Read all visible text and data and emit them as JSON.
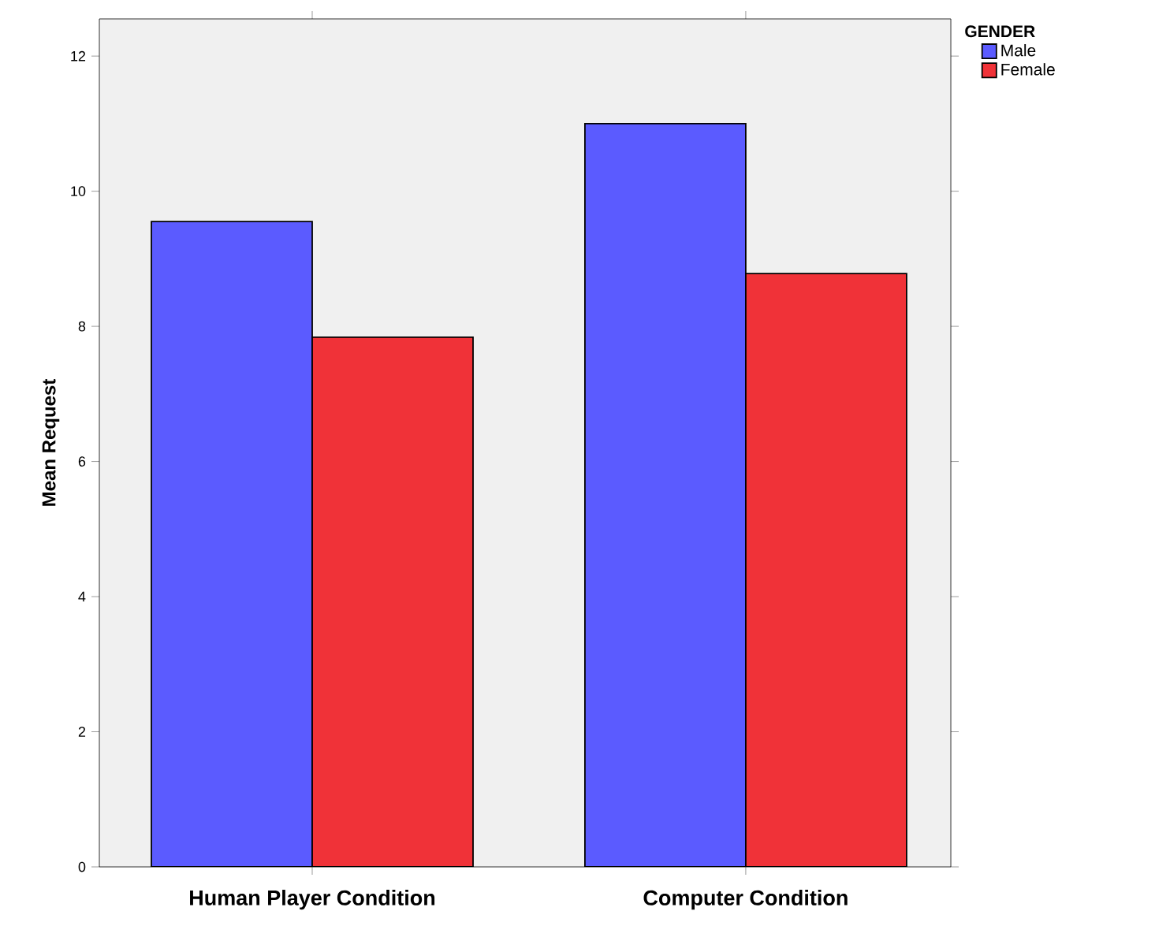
{
  "chart_data": {
    "type": "bar",
    "xlabel": null,
    "ylabel": "Mean Request",
    "legend_title": "GENDER",
    "categories": [
      "Human Player Condition",
      "Computer Condition"
    ],
    "series": [
      {
        "name": "Male",
        "color": "#5b5bff",
        "values": [
          9.55,
          11.0
        ]
      },
      {
        "name": "Female",
        "color": "#f03238",
        "values": [
          7.84,
          8.78
        ]
      }
    ],
    "ylim": [
      0,
      12.55
    ],
    "yticks": [
      0,
      2,
      4,
      6,
      8,
      10,
      12
    ],
    "grid": false,
    "legend": "top right"
  }
}
